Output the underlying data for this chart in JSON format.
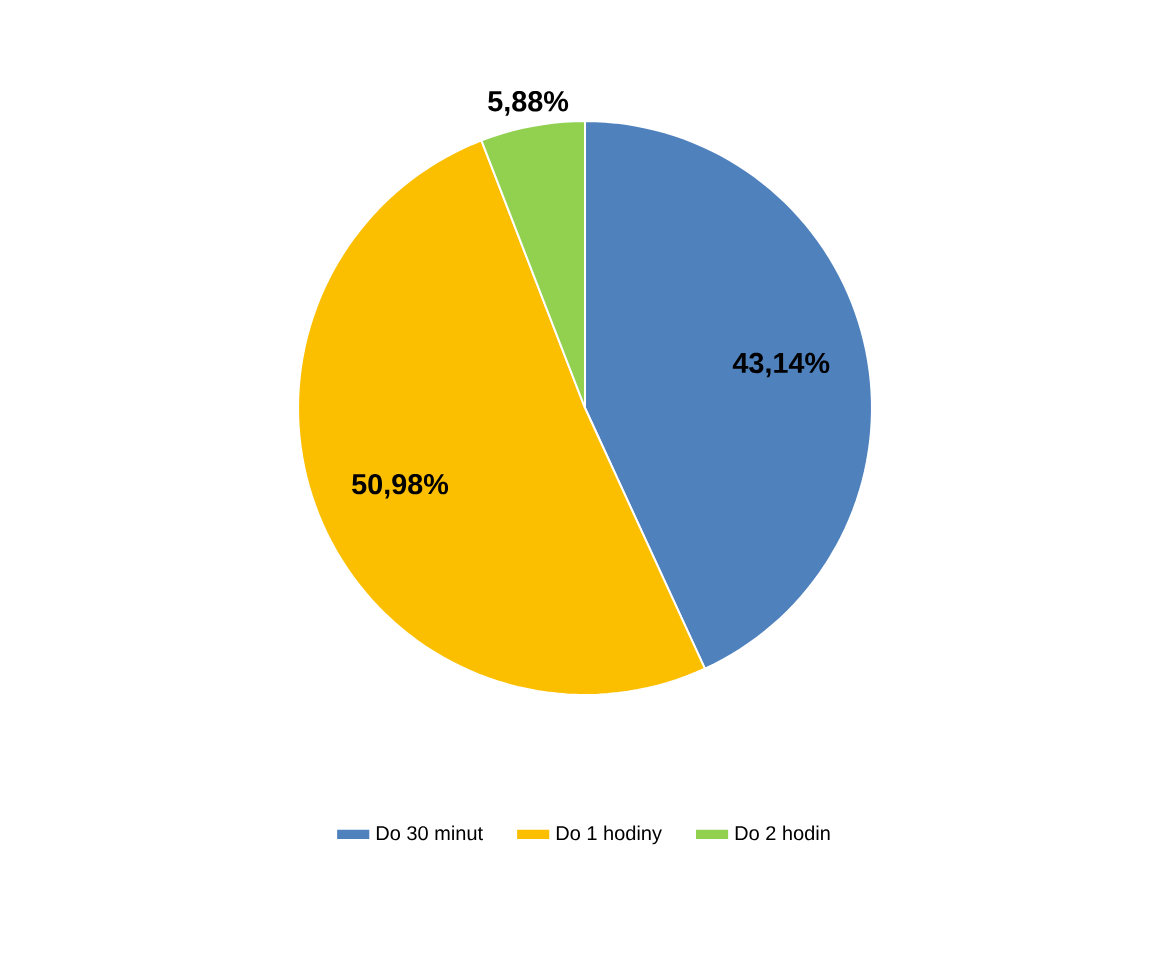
{
  "chart_data": {
    "type": "pie",
    "categories": [
      "Do 30 minut",
      "Do 1 hodiny",
      "Do 2 hodin"
    ],
    "values": [
      43.14,
      50.98,
      5.88
    ],
    "colors": [
      "#4f81bd",
      "#fcbf00",
      "#92d050"
    ],
    "value_labels": [
      "43,14%",
      "50,98%",
      "5,88%"
    ],
    "legend": "bottom"
  }
}
